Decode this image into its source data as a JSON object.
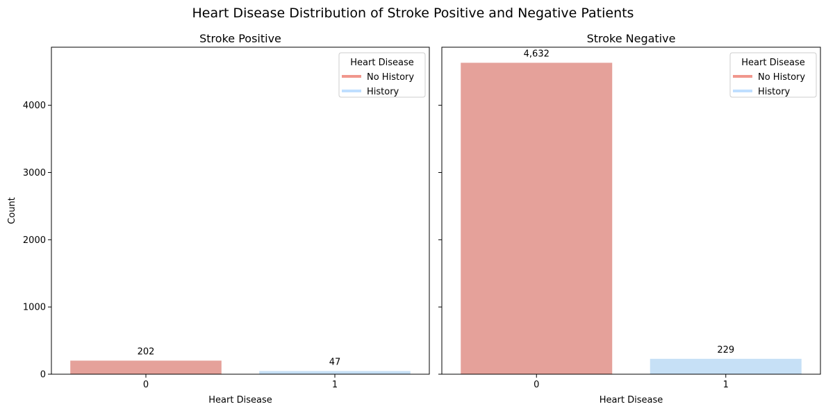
{
  "figure": {
    "title": "Heart Disease Distribution of Stroke Positive and Negative Patients"
  },
  "chart_data": [
    {
      "type": "bar",
      "title": "Stroke Positive",
      "xlabel": "Heart Disease",
      "ylabel": "Count",
      "categories": [
        "0",
        "1"
      ],
      "values": [
        202,
        47
      ],
      "value_labels": [
        "202",
        "47"
      ],
      "bar_colors": [
        "#e5a19a",
        "#c6e0f6"
      ],
      "ylim": [
        0,
        4863.6
      ],
      "yticks": [
        0,
        1000,
        2000,
        3000,
        4000
      ],
      "show_ytick_labels": true,
      "grid": false,
      "legend": {
        "title": "Heart Disease",
        "placement": "upper right",
        "entries": [
          {
            "label": "No History",
            "color": "#f1978d"
          },
          {
            "label": "History",
            "color": "#bfdfff"
          }
        ]
      }
    },
    {
      "type": "bar",
      "title": "Stroke Negative",
      "xlabel": "Heart Disease",
      "ylabel": "",
      "categories": [
        "0",
        "1"
      ],
      "values": [
        4632,
        229
      ],
      "value_labels": [
        "4,632",
        "229"
      ],
      "bar_colors": [
        "#e5a19a",
        "#c6e0f6"
      ],
      "ylim": [
        0,
        4863.6
      ],
      "yticks": [
        0,
        1000,
        2000,
        3000,
        4000
      ],
      "show_ytick_labels": false,
      "grid": false,
      "legend": {
        "title": "Heart Disease",
        "placement": "upper right",
        "entries": [
          {
            "label": "No History",
            "color": "#f1978d"
          },
          {
            "label": "History",
            "color": "#bfdfff"
          }
        ]
      }
    }
  ]
}
